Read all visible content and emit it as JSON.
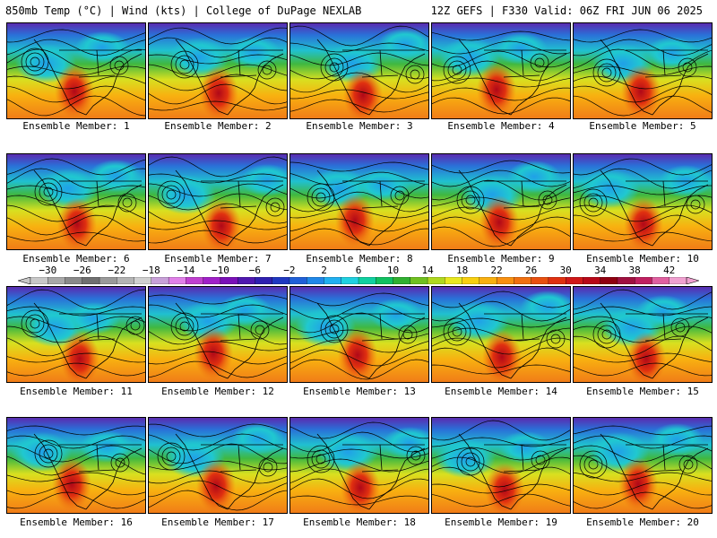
{
  "header": {
    "left": "850mb Temp (°C) | Wind (kts) | College of DuPage NEXLAB",
    "right": "12Z GEFS | F330 Valid: 06Z FRI JUN 06 2025"
  },
  "panel_label_prefix": "Ensemble Member:",
  "members": [
    1,
    2,
    3,
    4,
    5,
    6,
    7,
    8,
    9,
    10,
    11,
    12,
    13,
    14,
    15,
    16,
    17,
    18,
    19,
    20
  ],
  "colorbar": {
    "tick_labels": [
      "-30",
      "-26",
      "-22",
      "-18",
      "-14",
      "-10",
      "-6",
      "-2",
      "2",
      "6",
      "10",
      "14",
      "18",
      "22",
      "26",
      "30",
      "34",
      "38",
      "42"
    ],
    "min": -32,
    "max": 44,
    "step": 2,
    "colors": [
      "#c8c8c8",
      "#a8a8a8",
      "#8a8a8a",
      "#707070",
      "#9a9a9a",
      "#b4b4b4",
      "#d0d0d0",
      "#c8a0d8",
      "#e080e8",
      "#c040d0",
      "#a020c8",
      "#7a10b8",
      "#5018b0",
      "#3020b0",
      "#2038c0",
      "#2060d8",
      "#2088e8",
      "#20b0f0",
      "#20d0e0",
      "#10d0a0",
      "#10c060",
      "#30b030",
      "#70c020",
      "#b0d820",
      "#e8e820",
      "#f8d010",
      "#f8b010",
      "#f89010",
      "#f07010",
      "#e85010",
      "#e03010",
      "#d01818",
      "#b80818",
      "#900010",
      "#a01040",
      "#c02060",
      "#e060a0",
      "#f0a0d0"
    ]
  }
}
